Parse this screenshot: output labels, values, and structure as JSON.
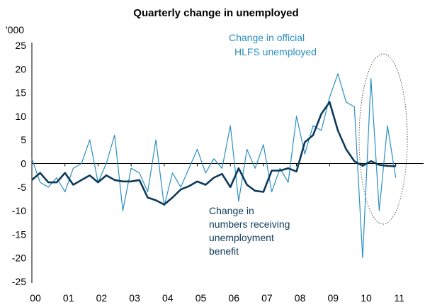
{
  "chart_data": {
    "type": "line",
    "title": "Quarterly change in unemployed",
    "ylabel_unit": "'000",
    "ylim": [
      -25,
      25
    ],
    "yticks": [
      25,
      20,
      15,
      10,
      5,
      0,
      -5,
      -10,
      -15,
      -20,
      -25
    ],
    "x_tick_labels": [
      "00",
      "01",
      "02",
      "03",
      "04",
      "05",
      "06",
      "07",
      "08",
      "09",
      "10",
      "11"
    ],
    "x_start_year": 2000,
    "periods_per_year": 4,
    "annotations": {
      "hlfs_line1": "Change in official",
      "hlfs_line2": "HLFS unemployed",
      "benefit_line1": "Change in",
      "benefit_line2": "numbers receiving",
      "benefit_line3": "unemployment",
      "benefit_line4": "benefit"
    },
    "colors": {
      "hlfs": "#2a8fc1",
      "benefit": "#0d3a5a",
      "axis": "#000000",
      "highlight": "#555555"
    },
    "series": [
      {
        "key": "hlfs",
        "values": [
          1,
          -4,
          -5,
          -3,
          -6,
          -1,
          0,
          5,
          -4,
          0,
          6,
          -10,
          -1,
          -2,
          -6,
          5,
          -9,
          -2,
          -5,
          -1,
          3,
          -2,
          1,
          -1,
          8,
          -8,
          3,
          -1,
          4,
          -6,
          -1,
          -4,
          10,
          2,
          8,
          7,
          14,
          19,
          13,
          12,
          -20,
          18,
          -10,
          8,
          -3
        ]
      },
      {
        "key": "benefit",
        "values": [
          -3.5,
          -2,
          -4,
          -4,
          -2,
          -4.5,
          -3.5,
          -2.5,
          -4,
          -2.5,
          -3.5,
          -3.8,
          -3.8,
          -3.5,
          -7.2,
          -7.8,
          -8.7,
          -7.2,
          -5.5,
          -4.8,
          -3.8,
          -4.5,
          -3,
          -2.2,
          -5,
          -1,
          -4.5,
          -5.8,
          -6,
          -1.5,
          -1.5,
          -1,
          -1.7,
          4.5,
          6,
          10.5,
          13,
          7,
          3,
          0.5,
          -0.5,
          0.5,
          -0.3,
          -0.5,
          -0.6
        ]
      }
    ]
  }
}
